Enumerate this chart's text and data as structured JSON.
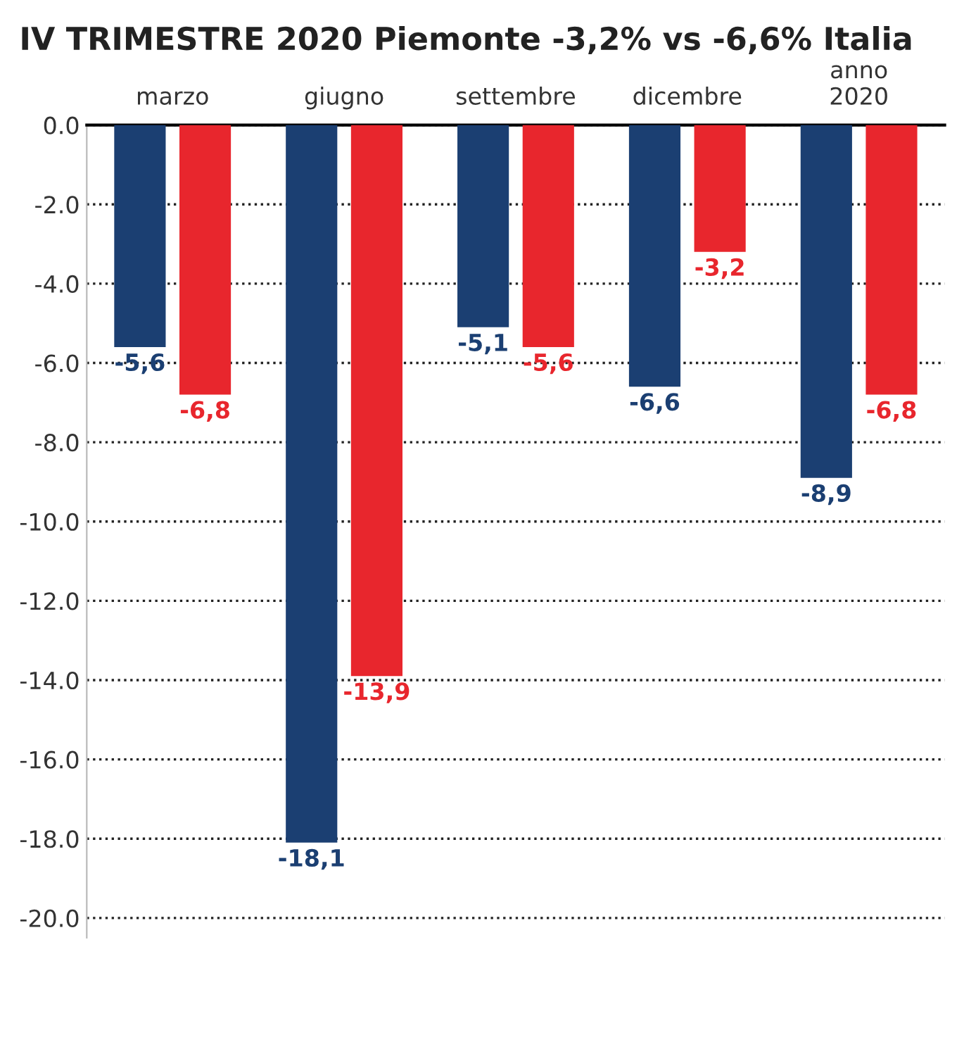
{
  "chart_data": {
    "type": "bar",
    "title": "IV TRIMESTRE 2020 Piemonte -3,2% vs -6,6% Italia",
    "categories": [
      "marzo",
      "giugno",
      "settembre",
      "dicembre",
      "anno\n2020"
    ],
    "series": [
      {
        "color": "#1b3f72",
        "values": [
          -5.6,
          -18.1,
          -5.1,
          -6.6,
          -8.9
        ],
        "value_labels": [
          "-5,6",
          "-18,1",
          "-5,1",
          "-6,6",
          "-8,9"
        ]
      },
      {
        "color": "#e8262d",
        "values": [
          -6.8,
          -13.9,
          -5.6,
          -3.2,
          -6.8
        ],
        "value_labels": [
          "-6,8",
          "-13,9",
          "-5,6",
          "-3,2",
          "-6,8"
        ]
      }
    ],
    "ylim": [
      -20.5,
      0
    ],
    "yticks": [
      {
        "value": 0,
        "label": "0.0"
      },
      {
        "value": -2,
        "label": "-2.0"
      },
      {
        "value": -4,
        "label": "-4.0"
      },
      {
        "value": -6,
        "label": "-6.0"
      },
      {
        "value": -8,
        "label": "-8.0"
      },
      {
        "value": -10,
        "label": "-10.0"
      },
      {
        "value": -12,
        "label": "-12.0"
      },
      {
        "value": -14,
        "label": "-14.0"
      },
      {
        "value": -16,
        "label": "-16.0"
      },
      {
        "value": -18,
        "label": "-18.0"
      },
      {
        "value": -20,
        "label": "-20.0"
      }
    ],
    "grid": "y",
    "line_style": "dotted"
  }
}
